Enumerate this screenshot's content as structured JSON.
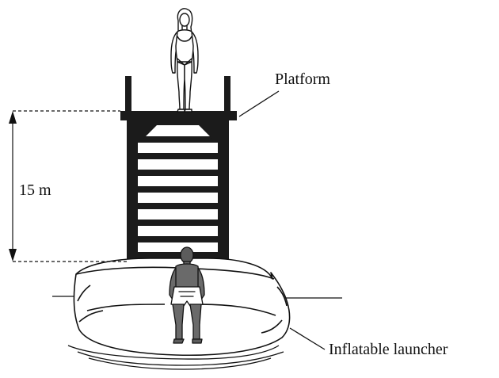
{
  "labels": {
    "platform": "Platform",
    "launcher": "Inflatable launcher",
    "height": "15 m"
  },
  "colors": {
    "ink": "#111111",
    "tower": "#1b1b1b",
    "skin_light": "#ffffff",
    "skin_dark": "#6a6a6a",
    "cushion": "#ffffff"
  }
}
